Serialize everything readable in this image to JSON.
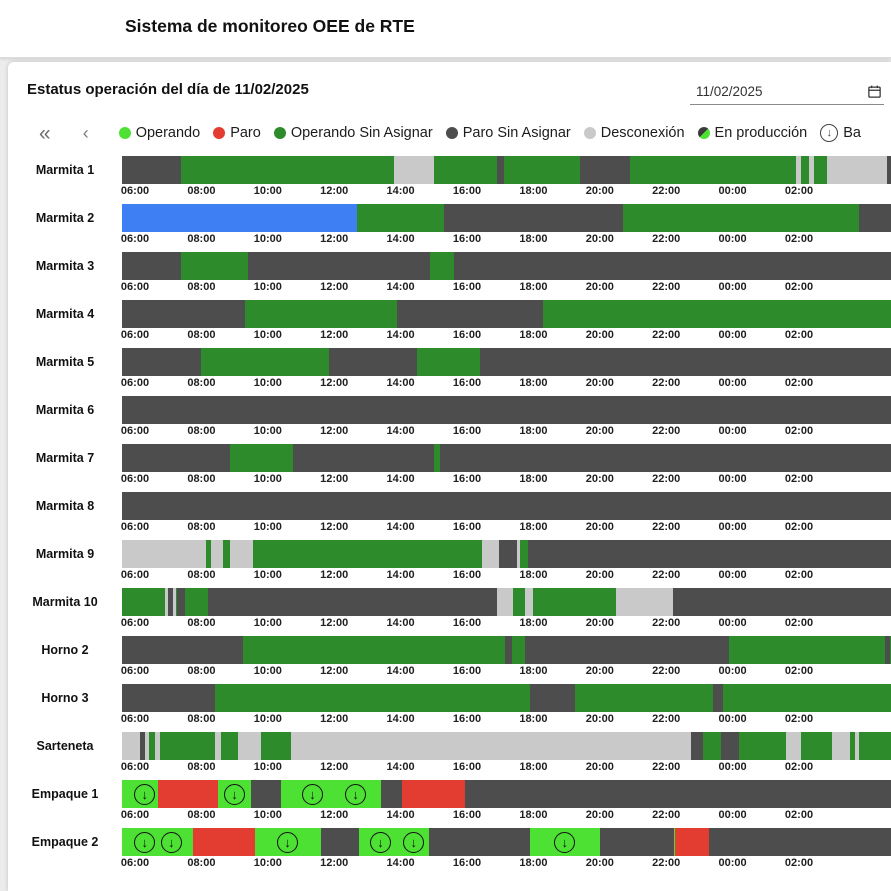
{
  "app": {
    "title": "Sistema de monitoreo OEE de RTE"
  },
  "panel": {
    "heading": "Estatus operación del día de 11/02/2025",
    "date_value": "11/02/2025"
  },
  "legend": {
    "nav": {
      "first": "«",
      "prev": "‹"
    },
    "items": [
      {
        "key": "O",
        "label": "Operando",
        "type": "dot"
      },
      {
        "key": "P",
        "label": "Paro",
        "type": "dot"
      },
      {
        "key": "OSA",
        "label": "Operando Sin Asignar",
        "type": "dot"
      },
      {
        "key": "PSA",
        "label": "Paro Sin Asignar",
        "type": "dot"
      },
      {
        "key": "D",
        "label": "Desconexión",
        "type": "dot"
      },
      {
        "key": "EP",
        "label": "En producción",
        "type": "half-dot"
      },
      {
        "key": "BA",
        "label": "Ba",
        "type": "circle-arrow"
      }
    ]
  },
  "chart": {
    "statuses": {
      "O": {
        "label": "Operando",
        "color": "#4ce133"
      },
      "P": {
        "label": "Paro",
        "color": "#e33c31"
      },
      "OSA": {
        "label": "Operando Sin Asignar",
        "color": "#2e8b2b"
      },
      "PSA": {
        "label": "Paro Sin Asignar",
        "color": "#4d4d4d"
      },
      "D": {
        "label": "Desconexión",
        "color": "#c9c9c9"
      },
      "EP": {
        "label": "En producción",
        "color": "#3a3a3a"
      },
      "B": {
        "label": "",
        "color": "#3e80f4"
      }
    },
    "axis_ticks": [
      "06:00",
      "08:00",
      "10:00",
      "12:00",
      "14:00",
      "16:00",
      "18:00",
      "20:00",
      "22:00",
      "00:00",
      "02:00"
    ],
    "machines": [
      {
        "name": "Marmita 1",
        "segments": [
          [
            "PSA",
            0,
            1.4
          ],
          [
            "OSA",
            1.4,
            7.8
          ],
          [
            "D",
            7.8,
            9.0
          ],
          [
            "OSA",
            9.0,
            10.9
          ],
          [
            "PSA",
            10.9,
            11.1
          ],
          [
            "OSA",
            11.1,
            13.4
          ],
          [
            "PSA",
            13.4,
            14.9
          ],
          [
            "OSA",
            14.9,
            19.9
          ],
          [
            "D",
            19.9,
            20.05
          ],
          [
            "OSA",
            20.05,
            20.3
          ],
          [
            "D",
            20.3,
            20.45
          ],
          [
            "OSA",
            20.45,
            20.85
          ],
          [
            "D",
            20.85,
            22.65
          ],
          [
            "PSA",
            22.65,
            24
          ]
        ]
      },
      {
        "name": "Marmita 2",
        "segments": [
          [
            "B",
            0,
            6.7
          ],
          [
            "OSA",
            6.7,
            9.3
          ],
          [
            "PSA",
            9.3,
            14.7
          ],
          [
            "OSA",
            14.7,
            21.8
          ],
          [
            "PSA",
            21.8,
            24
          ]
        ]
      },
      {
        "name": "Marmita 3",
        "segments": [
          [
            "PSA",
            0,
            1.4
          ],
          [
            "OSA",
            1.4,
            3.4
          ],
          [
            "PSA",
            3.4,
            8.9
          ],
          [
            "OSA",
            8.9,
            9.6
          ],
          [
            "PSA",
            9.6,
            24
          ]
        ]
      },
      {
        "name": "Marmita 4",
        "segments": [
          [
            "PSA",
            0,
            3.3
          ],
          [
            "OSA",
            3.3,
            7.9
          ],
          [
            "PSA",
            7.9,
            12.3
          ],
          [
            "OSA",
            12.3,
            24
          ]
        ]
      },
      {
        "name": "Marmita 5",
        "segments": [
          [
            "PSA",
            0,
            2.0
          ],
          [
            "OSA",
            2.0,
            5.85
          ],
          [
            "PSA",
            5.85,
            8.5
          ],
          [
            "OSA",
            8.5,
            10.4
          ],
          [
            "PSA",
            10.4,
            24
          ]
        ]
      },
      {
        "name": "Marmita 6",
        "segments": [
          [
            "PSA",
            0,
            24
          ]
        ]
      },
      {
        "name": "Marmita 7",
        "segments": [
          [
            "PSA",
            0,
            2.85
          ],
          [
            "OSA",
            2.85,
            4.75
          ],
          [
            "PSA",
            4.75,
            9.0
          ],
          [
            "OSA",
            9.0,
            9.18
          ],
          [
            "PSA",
            9.18,
            24
          ]
        ]
      },
      {
        "name": "Marmita 8",
        "segments": [
          [
            "PSA",
            0,
            24
          ]
        ]
      },
      {
        "name": "Marmita 9",
        "segments": [
          [
            "D",
            0,
            2.15
          ],
          [
            "OSA",
            2.15,
            2.3
          ],
          [
            "D",
            2.3,
            2.65
          ],
          [
            "OSA",
            2.65,
            2.85
          ],
          [
            "D",
            2.85,
            3.55
          ],
          [
            "OSA",
            3.55,
            10.45
          ],
          [
            "D",
            10.45,
            10.95
          ],
          [
            "PSA",
            10.95,
            11.5
          ],
          [
            "D",
            11.5,
            11.6
          ],
          [
            "OSA",
            11.6,
            11.85
          ],
          [
            "PSA",
            11.85,
            24
          ]
        ]
      },
      {
        "name": "Marmita 10",
        "segments": [
          [
            "OSA",
            0,
            0.9
          ],
          [
            "D",
            0.9,
            1.0
          ],
          [
            "PSA",
            1.0,
            1.15
          ],
          [
            "D",
            1.15,
            1.25
          ],
          [
            "PSA",
            1.25,
            1.5
          ],
          [
            "OSA",
            1.5,
            2.2
          ],
          [
            "PSA",
            2.2,
            10.9
          ],
          [
            "D",
            10.9,
            11.4
          ],
          [
            "OSA",
            11.4,
            11.75
          ],
          [
            "D",
            11.75,
            12.0
          ],
          [
            "OSA",
            12.0,
            14.5
          ],
          [
            "D",
            14.5,
            16.2
          ],
          [
            "PSA",
            16.2,
            24
          ]
        ]
      },
      {
        "name": "Horno 2",
        "segments": [
          [
            "PSA",
            0,
            3.25
          ],
          [
            "OSA",
            3.25,
            11.15
          ],
          [
            "PSA",
            11.15,
            11.35
          ],
          [
            "OSA",
            11.35,
            11.75
          ],
          [
            "PSA",
            11.75,
            17.9
          ],
          [
            "OSA",
            17.9,
            22.6
          ],
          [
            "PSA",
            22.6,
            22.75
          ],
          [
            "OSA",
            22.75,
            24
          ]
        ]
      },
      {
        "name": "Horno 3",
        "segments": [
          [
            "PSA",
            0,
            2.4
          ],
          [
            "OSA",
            2.4,
            11.9
          ],
          [
            "PSA",
            11.9,
            13.25
          ],
          [
            "OSA",
            13.25,
            17.4
          ],
          [
            "PSA",
            17.4,
            17.7
          ],
          [
            "OSA",
            17.7,
            24
          ]
        ]
      },
      {
        "name": "Sarteneta",
        "segments": [
          [
            "D",
            0,
            0.15
          ],
          [
            "PSA",
            0.15,
            0.3
          ],
          [
            "D",
            0.3,
            0.42
          ],
          [
            "OSA",
            0.42,
            0.6
          ],
          [
            "D",
            0.6,
            0.75
          ],
          [
            "OSA",
            0.75,
            2.4
          ],
          [
            "D",
            2.4,
            2.6
          ],
          [
            "OSA",
            2.6,
            3.1
          ],
          [
            "D",
            3.1,
            3.8
          ],
          [
            "OSA",
            3.8,
            4.7
          ],
          [
            "D",
            4.7,
            16.75
          ],
          [
            "PSA",
            16.75,
            17.1
          ],
          [
            "OSA",
            17.1,
            17.65
          ],
          [
            "PSA",
            17.65,
            18.2
          ],
          [
            "OSA",
            18.2,
            19.6
          ],
          [
            "D",
            19.6,
            20.05
          ],
          [
            "OSA",
            20.05,
            21.0
          ],
          [
            "D",
            21.0,
            21.55
          ],
          [
            "OSA",
            21.55,
            21.7
          ],
          [
            "D",
            21.7,
            21.8
          ],
          [
            "OSA",
            21.8,
            24
          ]
        ]
      },
      {
        "name": "Empaque 1",
        "segments": [
          [
            "O",
            0,
            0.7
          ],
          [
            "P",
            0.7,
            2.5
          ],
          [
            "O",
            2.5,
            3.5
          ],
          [
            "PSA",
            3.5,
            4.4
          ],
          [
            "O",
            4.4,
            7.4
          ],
          [
            "PSA",
            7.4,
            8.05
          ],
          [
            "P",
            8.05,
            9.95
          ],
          [
            "PSA",
            9.95,
            24
          ]
        ],
        "icons": [
          0.25,
          2.95,
          5.3,
          6.6
        ]
      },
      {
        "name": "Empaque 2",
        "segments": [
          [
            "O",
            0,
            1.75
          ],
          [
            "P",
            1.75,
            3.6
          ],
          [
            "O",
            3.6,
            5.6
          ],
          [
            "PSA",
            5.6,
            6.75
          ],
          [
            "O",
            6.75,
            8.85
          ],
          [
            "PSA",
            8.85,
            11.9
          ],
          [
            "O",
            11.9,
            14.0
          ],
          [
            "PSA",
            14.0,
            16.25
          ],
          [
            "P",
            16.25,
            17.3
          ],
          [
            "PSA",
            17.3,
            24
          ]
        ],
        "icons": [
          0.25,
          1.05,
          4.55,
          7.35,
          8.35,
          12.9
        ]
      }
    ]
  }
}
